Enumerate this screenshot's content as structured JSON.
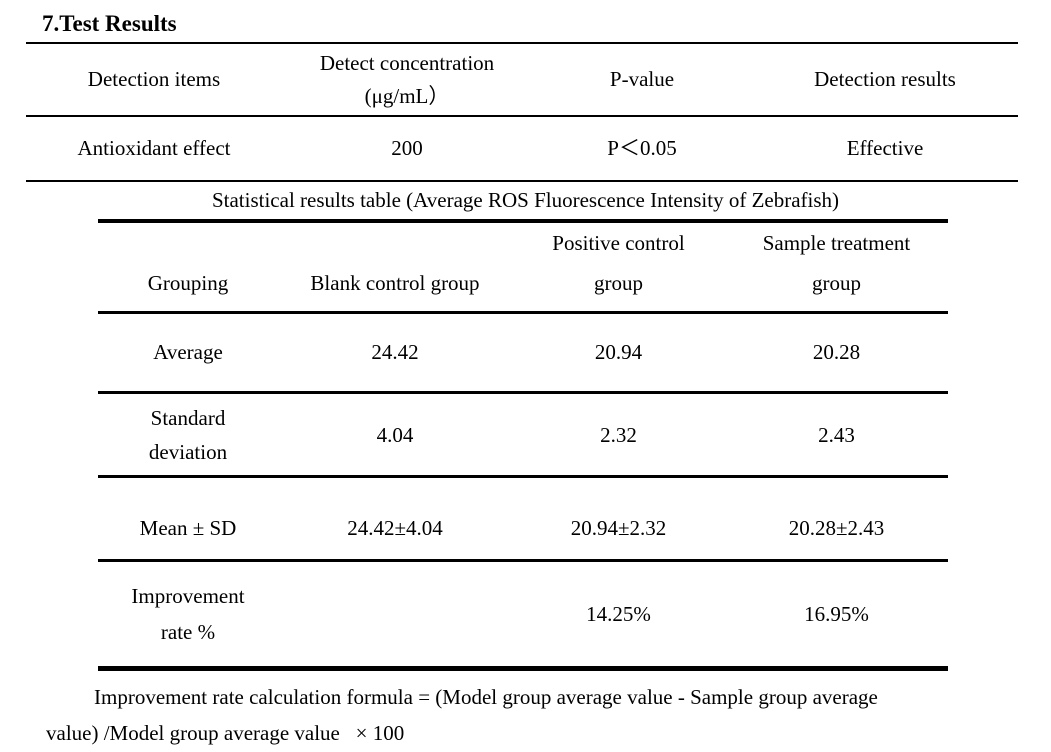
{
  "document": {
    "title": "7.Test Results",
    "footnote": {
      "line1": "Improvement rate calculation formula = (Model group average value - Sample group average",
      "line2": "value) /Model group average value  × 100"
    }
  },
  "detection_table": {
    "headers": {
      "items": "Detection items",
      "concentration_line1": "Detect concentration",
      "concentration_line2": "(μg/mL）",
      "p_value": "P-value",
      "results": "Detection results"
    },
    "row": {
      "item": "Antioxidant effect",
      "concentration": "200",
      "p_value": "P＜0.05",
      "result": "Effective"
    }
  },
  "stats_table": {
    "caption": "Statistical results table (Average ROS Fluorescence Intensity of Zebrafish)",
    "headers": {
      "grouping": "Grouping",
      "blank": "Blank control group",
      "positive_line1": "Positive control",
      "positive_line2": "group",
      "sample_line1": "Sample treatment",
      "sample_line2": "group"
    },
    "rows": {
      "average": {
        "label": "Average",
        "blank": "24.42",
        "positive": "20.94",
        "sample": "20.28"
      },
      "std": {
        "label_line1": "Standard",
        "label_line2": "deviation",
        "blank": "4.04",
        "positive": "2.32",
        "sample": "2.43"
      },
      "mean_sd": {
        "label": "Mean ± SD",
        "blank": "24.42±4.04",
        "positive": "20.94±2.32",
        "sample": "20.28±2.43"
      },
      "improvement": {
        "label_line1": "Improvement",
        "label_line2": "rate %",
        "blank": "",
        "positive": "14.25%",
        "sample": "16.95%"
      }
    }
  }
}
